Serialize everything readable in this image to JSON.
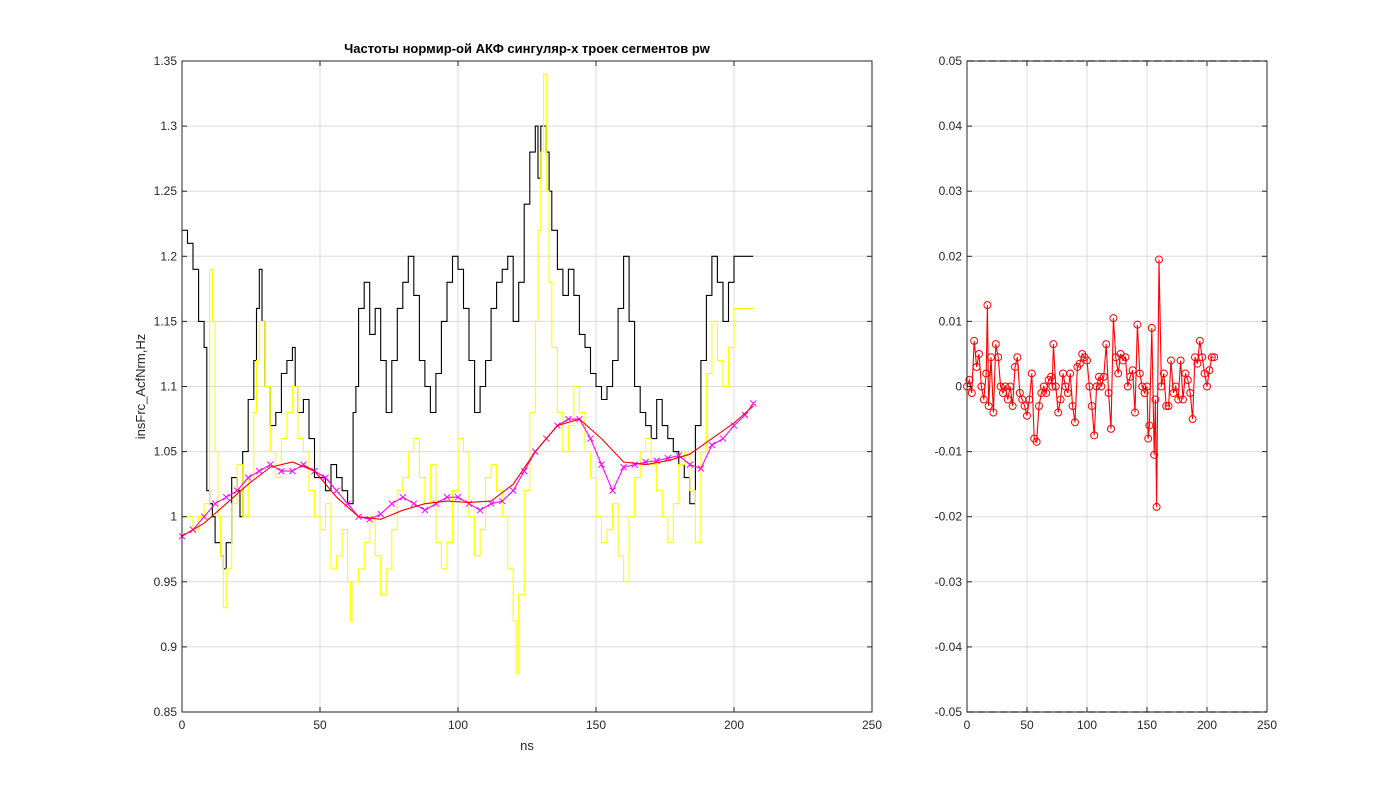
{
  "figure": {
    "background": "#ffffff"
  },
  "chart_data": [
    {
      "type": "line",
      "title": "Частоты нормир-ой АКФ сингуляр-х троек сегментов pw",
      "xlabel": "ns",
      "ylabel": "insFrc_AcfNrm,Hz",
      "xlim": [
        0,
        250
      ],
      "ylim": [
        0.85,
        1.35
      ],
      "xticks": [
        0,
        50,
        100,
        150,
        200,
        250
      ],
      "yticks": [
        0.85,
        0.9,
        0.95,
        1,
        1.05,
        1.1,
        1.15,
        1.2,
        1.25,
        1.3,
        1.35
      ],
      "xtick_labels": [
        "0",
        "50",
        "100",
        "150",
        "200",
        "250"
      ],
      "ytick_labels": [
        "0.85",
        "0.9",
        "0.95",
        "1",
        "1.05",
        "1.1",
        "1.15",
        "1.2",
        "1.25",
        "1.3",
        "1.35"
      ],
      "grid": true,
      "series": [
        {
          "color": "#000000",
          "style": "stairs",
          "x": [
            0,
            2,
            4,
            6,
            8,
            9,
            10,
            11,
            12,
            14,
            15,
            16,
            18,
            20,
            21,
            22,
            24,
            26,
            27,
            28,
            29,
            30,
            32,
            34,
            36,
            38,
            40,
            41,
            42,
            44,
            46,
            48,
            50,
            52,
            54,
            56,
            58,
            60,
            62,
            63,
            64,
            66,
            68,
            70,
            72,
            74,
            76,
            78,
            80,
            82,
            84,
            86,
            88,
            90,
            92,
            94,
            96,
            98,
            100,
            102,
            104,
            106,
            108,
            110,
            112,
            114,
            116,
            118,
            120,
            122,
            124,
            126,
            128,
            129,
            130,
            132,
            133,
            134,
            136,
            138,
            140,
            142,
            144,
            146,
            148,
            150,
            152,
            154,
            156,
            158,
            160,
            162,
            164,
            166,
            168,
            170,
            172,
            174,
            176,
            178,
            180,
            182,
            184,
            186,
            188,
            190,
            192,
            194,
            196,
            198,
            200,
            202,
            204,
            206,
            207
          ],
          "y": [
            1.22,
            1.21,
            1.19,
            1.15,
            1.13,
            1.02,
            1.01,
            1.0,
            0.98,
            0.97,
            0.96,
            0.98,
            1.03,
            1.02,
            1.0,
            1.05,
            1.09,
            1.12,
            1.16,
            1.19,
            1.15,
            1.1,
            1.07,
            1.08,
            1.11,
            1.12,
            1.13,
            1.1,
            1.08,
            1.09,
            1.06,
            1.03,
            1.03,
            1.02,
            1.04,
            1.03,
            1.02,
            1.01,
            1.08,
            1.1,
            1.16,
            1.18,
            1.14,
            1.16,
            1.12,
            1.08,
            1.12,
            1.16,
            1.18,
            1.2,
            1.17,
            1.12,
            1.1,
            1.08,
            1.11,
            1.15,
            1.18,
            1.2,
            1.19,
            1.16,
            1.12,
            1.08,
            1.1,
            1.12,
            1.16,
            1.18,
            1.19,
            1.2,
            1.15,
            1.18,
            1.24,
            1.28,
            1.3,
            1.26,
            1.3,
            1.28,
            1.25,
            1.22,
            1.19,
            1.17,
            1.19,
            1.17,
            1.14,
            1.13,
            1.11,
            1.1,
            1.09,
            1.1,
            1.12,
            1.16,
            1.2,
            1.15,
            1.1,
            1.08,
            1.07,
            1.06,
            1.09,
            1.07,
            1.06,
            1.05,
            1.04,
            1.03,
            1.01,
            1.07,
            1.12,
            1.17,
            1.2,
            1.18,
            1.15,
            1.18,
            1.2,
            1.2,
            1.2,
            1.2,
            1.2
          ]
        },
        {
          "color": "#ffff00",
          "style": "stairs",
          "x": [
            0,
            2,
            4,
            6,
            8,
            10,
            11,
            12,
            13,
            14,
            15,
            16,
            18,
            20,
            22,
            24,
            26,
            27,
            28,
            30,
            32,
            34,
            36,
            38,
            40,
            42,
            44,
            46,
            48,
            50,
            52,
            54,
            56,
            58,
            60,
            61,
            62,
            64,
            66,
            68,
            70,
            72,
            74,
            76,
            78,
            80,
            82,
            84,
            86,
            88,
            90,
            92,
            94,
            96,
            98,
            100,
            102,
            104,
            106,
            108,
            110,
            112,
            114,
            116,
            118,
            120,
            121,
            122,
            124,
            126,
            128,
            129,
            130,
            131,
            132,
            133,
            134,
            136,
            138,
            140,
            142,
            144,
            146,
            148,
            150,
            152,
            154,
            156,
            158,
            160,
            162,
            164,
            166,
            168,
            170,
            172,
            174,
            176,
            178,
            180,
            182,
            184,
            186,
            188,
            190,
            192,
            194,
            196,
            198,
            200,
            202,
            204,
            206,
            207
          ],
          "y": [
            1.0,
            1.0,
            0.99,
            1.0,
            1.01,
            1.19,
            1.15,
            1.05,
            1.0,
            0.97,
            0.93,
            0.96,
            1.01,
            1.04,
            1.0,
            1.03,
            1.08,
            1.12,
            1.15,
            1.1,
            1.05,
            1.03,
            1.06,
            1.08,
            1.1,
            1.06,
            1.05,
            1.02,
            1.0,
            0.99,
            1.01,
            0.96,
            0.97,
            0.99,
            0.95,
            0.92,
            0.95,
            0.96,
            0.98,
            1.0,
            0.97,
            0.94,
            0.96,
            0.99,
            1.02,
            1.03,
            1.05,
            1.06,
            1.03,
            1.01,
            1.04,
            0.98,
            0.96,
            0.98,
            1.02,
            1.06,
            1.05,
            1.0,
            0.97,
            0.99,
            1.03,
            1.04,
            1.02,
            1.0,
            0.96,
            0.92,
            0.88,
            0.94,
            1.02,
            1.08,
            1.15,
            1.22,
            1.28,
            1.34,
            1.25,
            1.18,
            1.13,
            1.08,
            1.05,
            1.07,
            1.1,
            1.08,
            1.05,
            1.03,
            1.0,
            0.98,
            0.99,
            1.01,
            0.97,
            0.95,
            1.0,
            1.03,
            1.05,
            1.06,
            1.04,
            1.02,
            1.0,
            0.98,
            1.01,
            1.04,
            1.05,
            1.02,
            0.98,
            1.05,
            1.11,
            1.15,
            1.12,
            1.1,
            1.13,
            1.16,
            1.16,
            1.16,
            1.16,
            1.16
          ]
        },
        {
          "color": "#ff00ff",
          "style": "line-x",
          "x": [
            0,
            4,
            8,
            12,
            16,
            20,
            24,
            28,
            32,
            36,
            40,
            44,
            48,
            52,
            56,
            60,
            64,
            68,
            72,
            76,
            80,
            84,
            88,
            92,
            96,
            100,
            104,
            108,
            112,
            116,
            120,
            124,
            128,
            132,
            136,
            140,
            144,
            148,
            152,
            156,
            160,
            164,
            168,
            172,
            176,
            180,
            184,
            188,
            192,
            196,
            200,
            204,
            207
          ],
          "y": [
            0.985,
            0.99,
            1.0,
            1.01,
            1.015,
            1.02,
            1.03,
            1.035,
            1.04,
            1.035,
            1.035,
            1.04,
            1.035,
            1.03,
            1.02,
            1.01,
            1.0,
            0.998,
            1.002,
            1.01,
            1.015,
            1.01,
            1.005,
            1.01,
            1.015,
            1.015,
            1.01,
            1.005,
            1.01,
            1.012,
            1.02,
            1.035,
            1.05,
            1.06,
            1.07,
            1.075,
            1.075,
            1.06,
            1.04,
            1.02,
            1.038,
            1.04,
            1.042,
            1.043,
            1.045,
            1.047,
            1.04,
            1.037,
            1.055,
            1.06,
            1.07,
            1.078,
            1.087
          ]
        },
        {
          "color": "#ff0000",
          "style": "line",
          "x": [
            0,
            8,
            16,
            24,
            32,
            40,
            48,
            56,
            64,
            72,
            80,
            88,
            96,
            104,
            112,
            120,
            128,
            136,
            144,
            152,
            160,
            168,
            176,
            184,
            192,
            200,
            207
          ],
          "y": [
            0.985,
            0.995,
            1.01,
            1.025,
            1.038,
            1.042,
            1.035,
            1.015,
            1.0,
            0.998,
            1.005,
            1.01,
            1.012,
            1.011,
            1.012,
            1.025,
            1.05,
            1.07,
            1.075,
            1.06,
            1.042,
            1.04,
            1.043,
            1.048,
            1.06,
            1.072,
            1.085
          ]
        }
      ]
    },
    {
      "type": "line",
      "xlim": [
        0,
        250
      ],
      "ylim": [
        -0.05,
        0.05
      ],
      "xticks": [
        0,
        50,
        100,
        150,
        200,
        250
      ],
      "yticks": [
        -0.05,
        -0.04,
        -0.03,
        -0.02,
        -0.01,
        0,
        0.01,
        0.02,
        0.03,
        0.04,
        0.05
      ],
      "xtick_labels": [
        "0",
        "50",
        "100",
        "150",
        "200",
        "250"
      ],
      "ytick_labels": [
        "-0.05",
        "-0.04",
        "-0.03",
        "-0.02",
        "-0.01",
        "0",
        "0.01",
        "0.02",
        "0.03",
        "0.04",
        "0.05"
      ],
      "grid": true,
      "series": [
        {
          "color": "#ff0000",
          "style": "line-o",
          "x": [
            0,
            2,
            4,
            6,
            8,
            10,
            12,
            14,
            16,
            17,
            18,
            20,
            22,
            24,
            26,
            28,
            30,
            32,
            34,
            36,
            38,
            40,
            42,
            44,
            46,
            48,
            50,
            52,
            54,
            56,
            58,
            60,
            62,
            64,
            66,
            68,
            70,
            71,
            72,
            74,
            76,
            78,
            80,
            82,
            84,
            86,
            88,
            90,
            92,
            94,
            96,
            98,
            100,
            102,
            104,
            106,
            108,
            110,
            112,
            114,
            116,
            118,
            120,
            122,
            124,
            126,
            128,
            130,
            132,
            134,
            136,
            138,
            140,
            142,
            144,
            146,
            148,
            150,
            151,
            152,
            154,
            156,
            157,
            158,
            160,
            162,
            164,
            166,
            168,
            170,
            172,
            174,
            176,
            178,
            180,
            182,
            184,
            186,
            188,
            190,
            192,
            194,
            196,
            198,
            200,
            202,
            204,
            206
          ],
          "y": [
            0.0,
            0.001,
            -0.001,
            0.007,
            0.003,
            0.005,
            0.0,
            -0.002,
            0.002,
            0.0125,
            -0.003,
            0.0045,
            -0.004,
            0.0065,
            0.0045,
            0.0,
            -0.001,
            0.0,
            -0.002,
            0.0,
            -0.003,
            0.003,
            0.0045,
            -0.001,
            -0.002,
            -0.003,
            -0.0045,
            -0.002,
            0.002,
            -0.008,
            -0.0085,
            -0.003,
            -0.001,
            0.0,
            -0.001,
            0.001,
            0.0015,
            0.0,
            0.0065,
            0.0,
            -0.004,
            -0.002,
            0.002,
            0.0,
            -0.001,
            0.002,
            -0.003,
            -0.0055,
            0.003,
            0.0035,
            0.005,
            0.0045,
            0.004,
            0.0,
            -0.003,
            -0.0075,
            0.0,
            0.0015,
            0.0,
            0.0015,
            0.0065,
            -0.001,
            -0.0065,
            0.0105,
            0.0045,
            0.002,
            0.005,
            0.004,
            0.0045,
            0.0,
            0.0015,
            0.0025,
            -0.004,
            0.0095,
            0.002,
            0.0,
            -0.001,
            0.0,
            -0.008,
            -0.006,
            0.009,
            -0.0105,
            -0.002,
            -0.0185,
            0.0195,
            0.0,
            0.002,
            -0.003,
            -0.003,
            0.004,
            -0.001,
            0.0,
            -0.002,
            0.004,
            -0.002,
            0.002,
            0.001,
            -0.001,
            -0.005,
            0.0045,
            0.0035,
            0.007,
            0.0045,
            0.002,
            0.0,
            0.0025,
            0.0045,
            0.0045
          ]
        }
      ]
    }
  ]
}
